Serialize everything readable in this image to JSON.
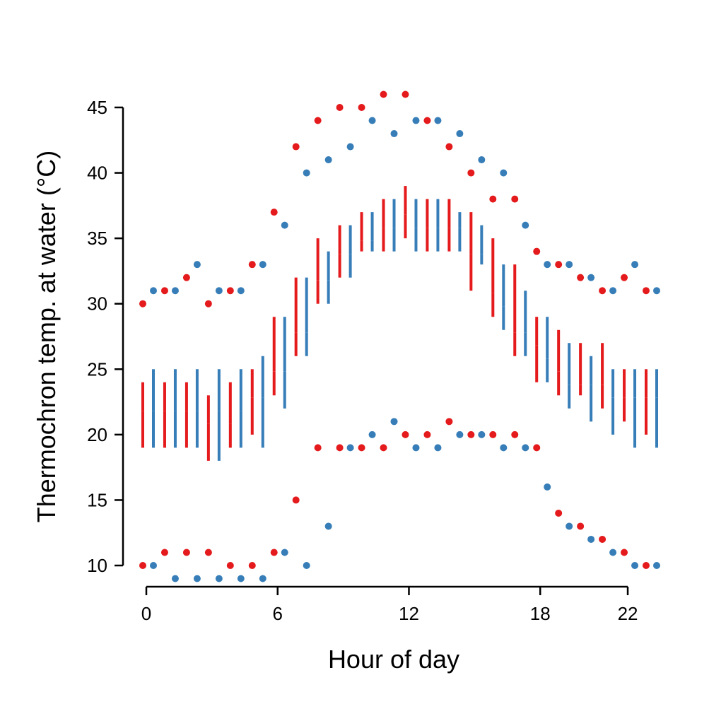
{
  "chart_data": {
    "type": "tufte-boxplot",
    "xlabel": "Hour of day",
    "ylabel": "Thermochron temp. at water (°C)",
    "ylim": [
      10,
      45
    ],
    "xlim": [
      0,
      23
    ],
    "x_ticks": [
      0,
      6,
      12,
      18,
      22
    ],
    "y_ticks": [
      10,
      15,
      20,
      25,
      30,
      35,
      40,
      45
    ],
    "grid": false,
    "legend": "none",
    "series": [
      {
        "color": "#e41a1c",
        "hours": [
          0,
          1,
          2,
          3,
          4,
          5,
          6,
          7,
          8,
          9,
          10,
          11,
          12,
          13,
          14,
          15,
          16,
          17,
          18,
          19,
          20,
          21,
          22,
          23
        ],
        "min": [
          10,
          11,
          11,
          11,
          10,
          10,
          11,
          15,
          19,
          19,
          19,
          19,
          20,
          20,
          21,
          20,
          20,
          20,
          19,
          14,
          13,
          12,
          11,
          10
        ],
        "q1": [
          19,
          19,
          19,
          18,
          19,
          20,
          23,
          26,
          30,
          32,
          34,
          34,
          35,
          34,
          34,
          31,
          29,
          26,
          24,
          23,
          23,
          22,
          21,
          20
        ],
        "median": [
          22,
          22,
          22,
          21,
          21,
          23,
          25,
          28,
          32,
          34,
          35,
          36,
          37,
          36,
          36,
          34,
          31,
          28,
          27,
          25,
          24,
          24,
          23,
          23
        ],
        "q3": [
          24,
          24,
          24,
          23,
          24,
          25,
          29,
          32,
          35,
          36,
          37,
          38,
          39,
          38,
          38,
          37,
          35,
          33,
          29,
          28,
          27,
          27,
          25,
          25
        ],
        "max": [
          30,
          31,
          32,
          30,
          31,
          33,
          37,
          42,
          44,
          45,
          45,
          46,
          46,
          44,
          42,
          40,
          38,
          38,
          34,
          33,
          32,
          31,
          32,
          31
        ]
      },
      {
        "color": "#377eb8",
        "hours": [
          0,
          1,
          2,
          3,
          4,
          5,
          6,
          7,
          8,
          9,
          10,
          11,
          12,
          13,
          14,
          15,
          16,
          17,
          18,
          19,
          20,
          21,
          22,
          23
        ],
        "min": [
          10,
          9,
          9,
          9,
          9,
          9,
          11,
          10,
          13,
          19,
          20,
          21,
          19,
          19,
          20,
          20,
          19,
          19,
          16,
          13,
          12,
          11,
          10,
          10
        ],
        "q1": [
          19,
          19,
          19,
          18,
          19,
          19,
          22,
          26,
          30,
          32,
          34,
          34,
          34,
          34,
          34,
          33,
          28,
          26,
          24,
          22,
          21,
          20,
          19,
          19
        ],
        "median": [
          22,
          22,
          22,
          22,
          22,
          23,
          25,
          28,
          32,
          34,
          35,
          36,
          36,
          36,
          36,
          34,
          30,
          28,
          26,
          24,
          24,
          23,
          23,
          23
        ],
        "q3": [
          25,
          25,
          25,
          25,
          25,
          26,
          29,
          32,
          34,
          36,
          37,
          38,
          38,
          38,
          37,
          36,
          33,
          31,
          29,
          27,
          26,
          25,
          25,
          25
        ],
        "max": [
          31,
          31,
          33,
          31,
          31,
          33,
          36,
          40,
          41,
          42,
          44,
          43,
          44,
          44,
          43,
          41,
          40,
          36,
          33,
          33,
          32,
          31,
          33,
          31
        ]
      }
    ]
  }
}
